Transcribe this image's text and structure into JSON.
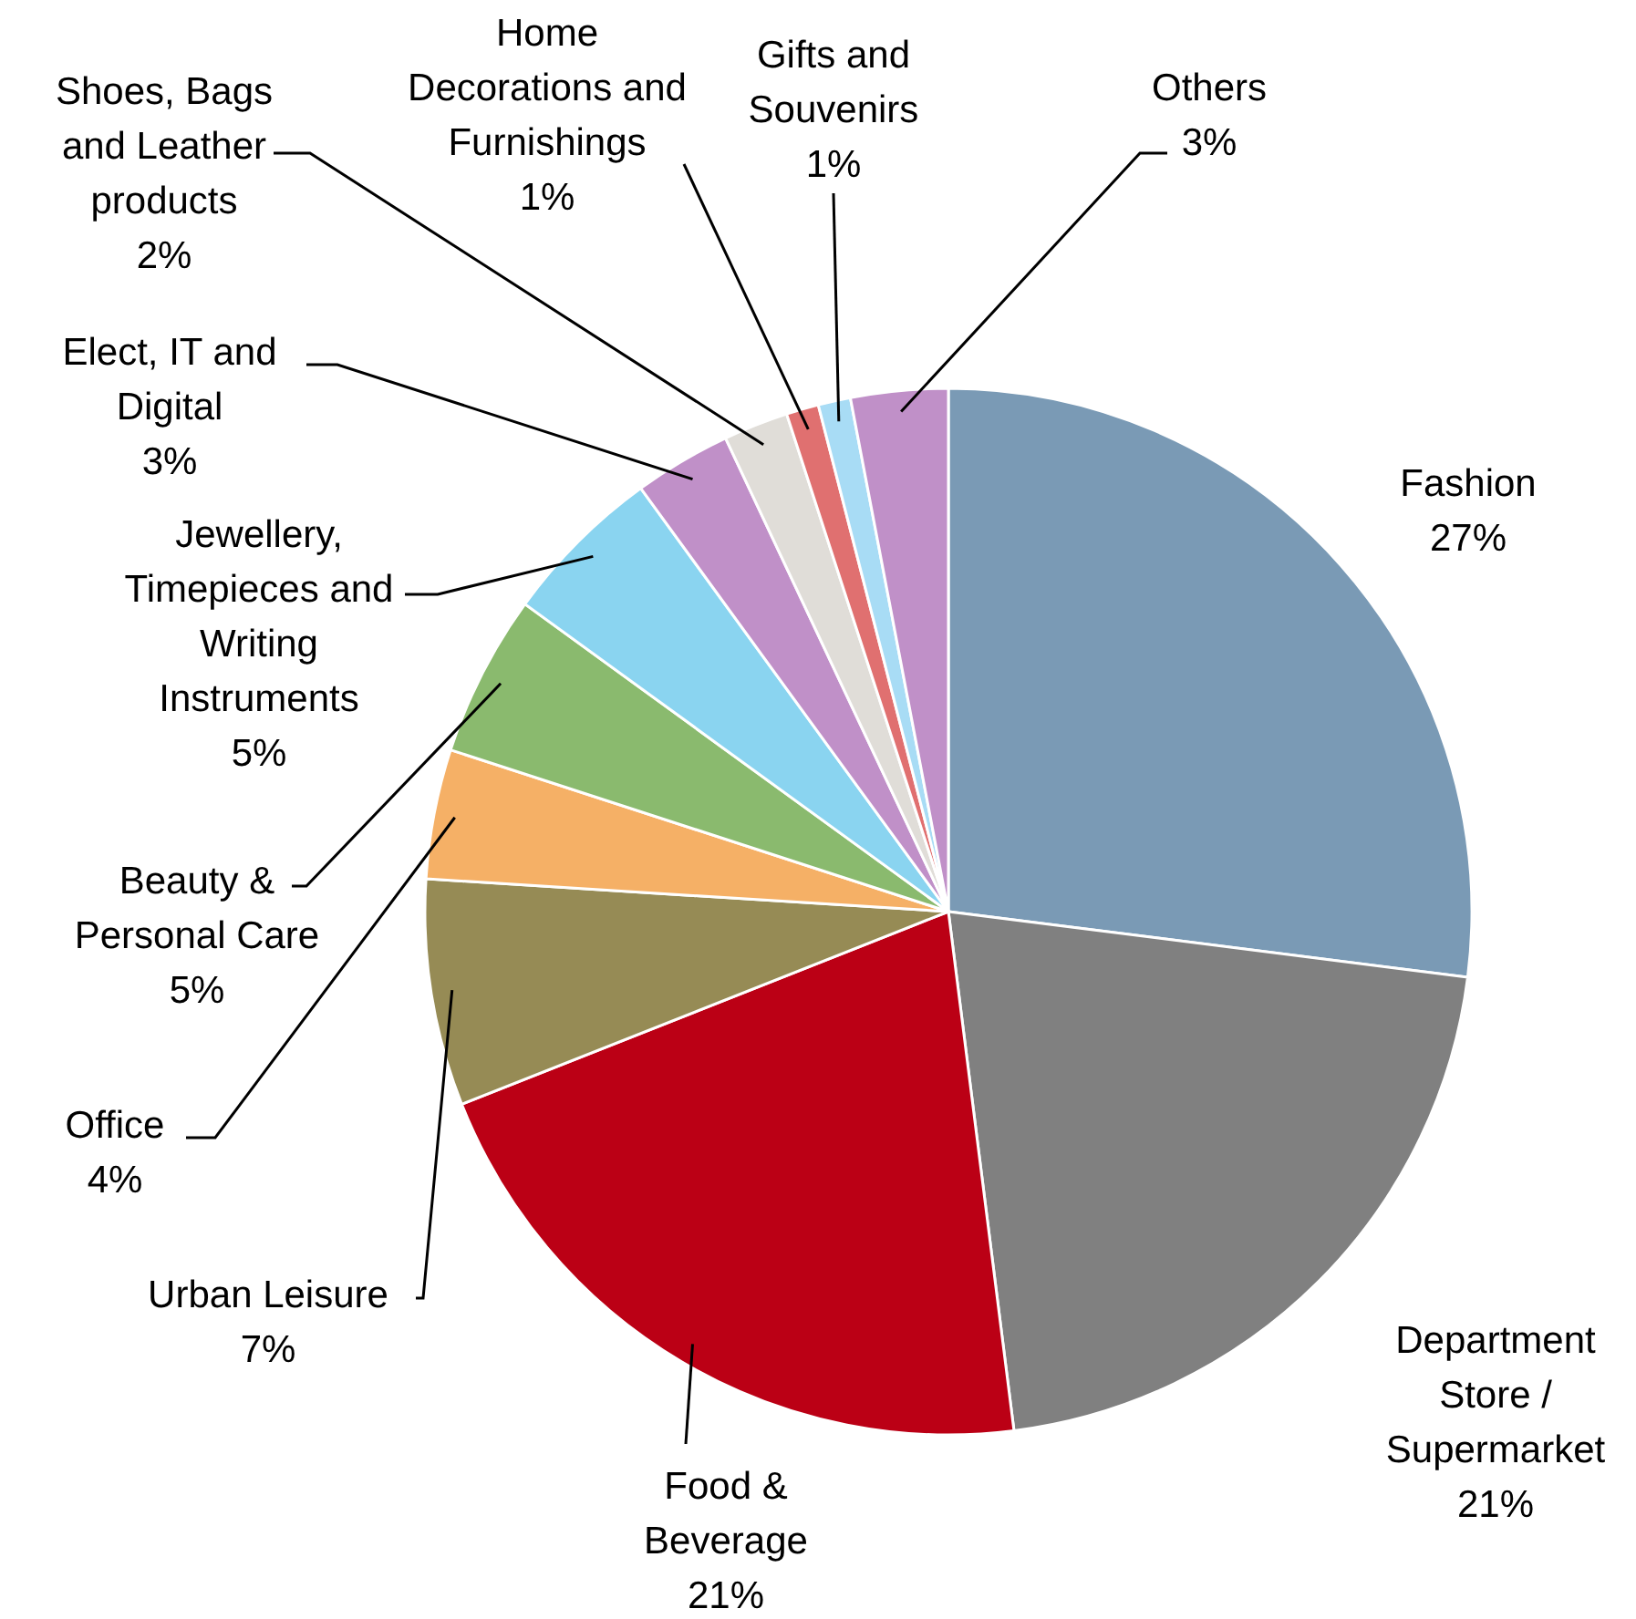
{
  "chart_data": {
    "type": "pie",
    "categories": [
      "Fashion",
      "Department Store / Supermarket",
      "Food & Beverage",
      "Urban Leisure",
      "Office",
      "Beauty & Personal Care",
      "Jewellery, Timepieces and Writing Instruments",
      "Elect, IT and Digital",
      "Shoes, Bags and Leather products",
      "Home Decorations and Furnishings",
      "Gifts and Souvenirs",
      "Others"
    ],
    "values": [
      27,
      21,
      21,
      7,
      4,
      5,
      5,
      3,
      2,
      1,
      1,
      3
    ],
    "value_labels": [
      "27%",
      "21%",
      "21%",
      "7%",
      "4%",
      "5%",
      "5%",
      "3%",
      "2%",
      "1%",
      "1%",
      "3%"
    ],
    "colors": [
      "#7a9ab5",
      "#808080",
      "#bb0015",
      "#968b55",
      "#f5b066",
      "#8aba6e",
      "#8ad4f0",
      "#c090c8",
      "#e0ddd8",
      "#e07070",
      "#a8dcf5",
      "#c090c8"
    ]
  }
}
